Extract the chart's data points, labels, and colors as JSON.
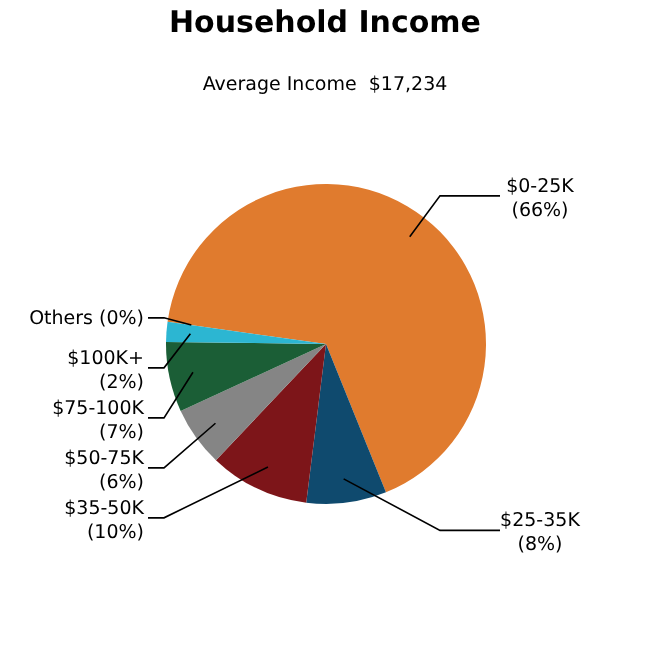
{
  "chart_data": {
    "type": "pie",
    "title": "Household Income",
    "subtitle": "Average Income  $17,234",
    "categories": [
      "$0-25K",
      "$25-35K",
      "$35-50K",
      "$50-75K",
      "$75-100K",
      "$100K+",
      "Others"
    ],
    "values": [
      66,
      8,
      10,
      6,
      7,
      2,
      0
    ],
    "value_labels": [
      "(66%)",
      "(8%)",
      "(10%)",
      "(6%)",
      "(7%)",
      "(2%)",
      "(0%)"
    ],
    "colors": [
      "#e07b2e",
      "#0f4a6e",
      "#7d1519",
      "#858585",
      "#1b5e36",
      "#2cb6d2",
      "#4a4a4a"
    ]
  }
}
